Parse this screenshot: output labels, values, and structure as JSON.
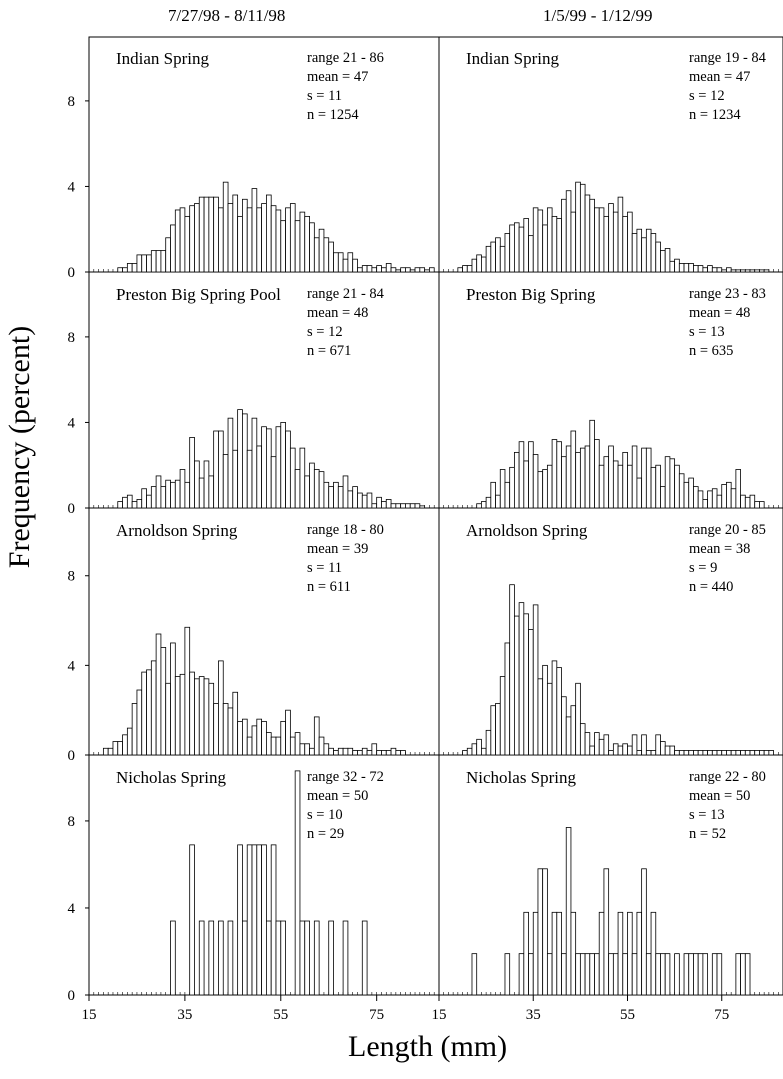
{
  "figure": {
    "ylabel": "Frequency (percent)",
    "xlabel": "Length (mm)"
  },
  "chart_data": [
    {
      "type": "bar",
      "column_title": "7/27/98 - 8/11/98",
      "panels": [
        {
          "site": "Indian Spring",
          "stats": [
            "range 21 - 86",
            "mean = 47",
            "s = 11",
            "n = 1254"
          ],
          "x": [
            21,
            22,
            23,
            24,
            25,
            26,
            27,
            28,
            29,
            30,
            31,
            32,
            33,
            34,
            35,
            36,
            37,
            38,
            39,
            40,
            41,
            42,
            43,
            44,
            45,
            46,
            47,
            48,
            49,
            50,
            51,
            52,
            53,
            54,
            55,
            56,
            57,
            58,
            59,
            60,
            61,
            62,
            63,
            64,
            65,
            66,
            67,
            68,
            69,
            70,
            71,
            72,
            73,
            74,
            75,
            76,
            77,
            78,
            79,
            80,
            81,
            82,
            83,
            84,
            85,
            86
          ],
          "values": [
            0.2,
            0.2,
            0.4,
            0.4,
            0.8,
            0.8,
            0.8,
            1.0,
            1.0,
            1.0,
            1.6,
            2.2,
            2.9,
            3.0,
            2.6,
            3.1,
            3.2,
            3.5,
            3.5,
            3.5,
            3.5,
            3.0,
            4.2,
            3.2,
            3.6,
            2.6,
            3.4,
            3.0,
            3.9,
            3.0,
            3.2,
            3.6,
            3.1,
            2.9,
            2.4,
            3.0,
            3.2,
            2.4,
            2.8,
            2.6,
            2.3,
            1.6,
            2.0,
            1.6,
            1.4,
            0.9,
            0.9,
            0.6,
            0.9,
            0.6,
            0.2,
            0.3,
            0.3,
            0.2,
            0.3,
            0.2,
            0.4,
            0.2,
            0.1,
            0.2,
            0.2,
            0.1,
            0.2,
            0.2,
            0.1,
            0.2
          ]
        },
        {
          "site": "Preston Big Spring Pool",
          "stats": [
            "range 21 - 84",
            "mean = 48",
            "s = 12",
            "n = 671"
          ],
          "x": [
            21,
            22,
            23,
            24,
            25,
            26,
            27,
            28,
            29,
            30,
            31,
            32,
            33,
            34,
            35,
            36,
            37,
            38,
            39,
            40,
            41,
            42,
            43,
            44,
            45,
            46,
            47,
            48,
            49,
            50,
            51,
            52,
            53,
            54,
            55,
            56,
            57,
            58,
            59,
            60,
            61,
            62,
            63,
            64,
            65,
            66,
            67,
            68,
            69,
            70,
            71,
            72,
            73,
            74,
            75,
            76,
            77,
            78,
            79,
            80,
            81,
            82,
            83,
            84
          ],
          "values": [
            0.3,
            0.5,
            0.6,
            0.3,
            0.4,
            0.9,
            0.6,
            1.0,
            1.5,
            1.0,
            1.3,
            1.2,
            1.3,
            1.8,
            1.2,
            3.3,
            2.2,
            1.4,
            2.2,
            1.5,
            3.6,
            3.6,
            2.5,
            4.2,
            2.7,
            4.6,
            4.4,
            2.7,
            4.2,
            2.9,
            3.8,
            3.7,
            2.4,
            3.8,
            4.0,
            3.6,
            2.8,
            1.8,
            2.8,
            1.5,
            2.1,
            1.8,
            1.7,
            1.2,
            1.0,
            1.2,
            1.0,
            1.5,
            0.8,
            1.0,
            0.7,
            0.6,
            0.7,
            0.2,
            0.5,
            0.3,
            0.4,
            0.2,
            0.2,
            0.2,
            0.2,
            0.2,
            0.2,
            0.1
          ]
        },
        {
          "site": "Arnoldson Spring",
          "stats": [
            "range 18 - 80",
            "mean = 39",
            "s = 11",
            "n = 611"
          ],
          "x": [
            18,
            19,
            20,
            21,
            22,
            23,
            24,
            25,
            26,
            27,
            28,
            29,
            30,
            31,
            32,
            33,
            34,
            35,
            36,
            37,
            38,
            39,
            40,
            41,
            42,
            43,
            44,
            45,
            46,
            47,
            48,
            49,
            50,
            51,
            52,
            53,
            54,
            55,
            56,
            57,
            58,
            59,
            60,
            61,
            62,
            63,
            64,
            65,
            66,
            67,
            68,
            69,
            70,
            71,
            72,
            73,
            74,
            75,
            76,
            77,
            78,
            79,
            80
          ],
          "values": [
            0.3,
            0.3,
            0.6,
            0.6,
            0.9,
            1.2,
            2.3,
            2.9,
            3.7,
            3.8,
            4.2,
            5.4,
            4.8,
            3.2,
            5.0,
            3.5,
            3.6,
            5.7,
            3.7,
            3.4,
            3.5,
            3.4,
            3.2,
            2.3,
            4.2,
            2.3,
            2.1,
            2.8,
            1.5,
            1.6,
            0.8,
            1.3,
            1.6,
            1.5,
            1.0,
            0.8,
            0.8,
            1.5,
            2.0,
            0.8,
            1.0,
            0.5,
            0.5,
            0.3,
            1.7,
            0.8,
            0.5,
            0.3,
            0.2,
            0.3,
            0.3,
            0.3,
            0.2,
            0.2,
            0.3,
            0.2,
            0.5,
            0.2,
            0.2,
            0.2,
            0.3,
            0.2,
            0.2
          ]
        }
      ]
    },
    {
      "type": "bar",
      "column_title": "1/5/99 - 1/12/99",
      "panels": [
        {
          "site": "Indian Spring",
          "stats": [
            "range 19 - 84",
            "mean = 47",
            "s = 12",
            "n = 1234"
          ],
          "x": [
            19,
            20,
            21,
            22,
            23,
            24,
            25,
            26,
            27,
            28,
            29,
            30,
            31,
            32,
            33,
            34,
            35,
            36,
            37,
            38,
            39,
            40,
            41,
            42,
            43,
            44,
            45,
            46,
            47,
            48,
            49,
            50,
            51,
            52,
            53,
            54,
            55,
            56,
            57,
            58,
            59,
            60,
            61,
            62,
            63,
            64,
            65,
            66,
            67,
            68,
            69,
            70,
            71,
            72,
            73,
            74,
            75,
            76,
            77,
            78,
            79,
            80,
            81,
            82,
            83,
            84
          ],
          "values": [
            0.2,
            0.3,
            0.3,
            0.6,
            0.8,
            0.7,
            1.2,
            1.4,
            1.6,
            1.2,
            1.8,
            2.2,
            2.3,
            2.1,
            2.5,
            1.7,
            3.0,
            2.9,
            2.2,
            3.0,
            2.6,
            2.5,
            3.4,
            3.8,
            2.8,
            4.2,
            4.1,
            3.6,
            3.4,
            3.0,
            3.0,
            2.6,
            3.2,
            2.8,
            3.5,
            2.6,
            2.8,
            1.8,
            2.0,
            1.6,
            2.0,
            1.8,
            1.4,
            1.0,
            1.1,
            0.5,
            0.6,
            0.4,
            0.4,
            0.4,
            0.3,
            0.3,
            0.2,
            0.3,
            0.2,
            0.2,
            0.1,
            0.2,
            0.1,
            0.1,
            0.1,
            0.1,
            0.1,
            0.1,
            0.1,
            0.1
          ]
        },
        {
          "site": "Preston Big Spring",
          "stats": [
            "range 23 - 83",
            "mean = 48",
            "s = 13",
            "n = 635"
          ],
          "x": [
            23,
            24,
            25,
            26,
            27,
            28,
            29,
            30,
            31,
            32,
            33,
            34,
            35,
            36,
            37,
            38,
            39,
            40,
            41,
            42,
            43,
            44,
            45,
            46,
            47,
            48,
            49,
            50,
            51,
            52,
            53,
            54,
            55,
            56,
            57,
            58,
            59,
            60,
            61,
            62,
            63,
            64,
            65,
            66,
            67,
            68,
            69,
            70,
            71,
            72,
            73,
            74,
            75,
            76,
            77,
            78,
            79,
            80,
            81,
            82,
            83
          ],
          "values": [
            0.2,
            0.3,
            0.5,
            1.2,
            0.6,
            1.8,
            1.2,
            1.9,
            2.6,
            3.1,
            2.2,
            3.1,
            2.5,
            1.7,
            1.8,
            2.0,
            3.2,
            3.1,
            2.4,
            2.9,
            3.6,
            2.6,
            2.8,
            2.9,
            4.1,
            3.2,
            2.0,
            2.4,
            2.9,
            2.2,
            2.0,
            2.6,
            2.0,
            2.9,
            1.4,
            2.8,
            2.8,
            1.9,
            2.0,
            1.0,
            2.4,
            2.3,
            2.0,
            1.6,
            1.2,
            1.4,
            1.0,
            0.8,
            0.4,
            0.8,
            0.9,
            0.6,
            1.1,
            1.2,
            0.9,
            1.8,
            0.6,
            0.5,
            0.6,
            0.3,
            0.3
          ]
        },
        {
          "site": "Arnoldson Spring",
          "stats": [
            "range 20 - 85",
            "mean = 38",
            "s = 9",
            "n = 440"
          ],
          "x": [
            20,
            21,
            22,
            23,
            24,
            25,
            26,
            27,
            28,
            29,
            30,
            31,
            32,
            33,
            34,
            35,
            36,
            37,
            38,
            39,
            40,
            41,
            42,
            43,
            44,
            45,
            46,
            47,
            48,
            49,
            50,
            51,
            52,
            53,
            54,
            55,
            56,
            57,
            58,
            59,
            60,
            61,
            62,
            63,
            64,
            65,
            66,
            67,
            68,
            69,
            70,
            71,
            72,
            73,
            74,
            75,
            76,
            77,
            78,
            79,
            80,
            81,
            82,
            83,
            84,
            85
          ],
          "values": [
            0.2,
            0.3,
            0.5,
            0.7,
            0.3,
            1.1,
            2.2,
            2.3,
            3.5,
            5.0,
            7.6,
            6.2,
            6.8,
            6.3,
            5.6,
            6.7,
            3.4,
            4.0,
            3.2,
            4.2,
            3.9,
            2.6,
            1.7,
            2.2,
            3.2,
            1.4,
            1.0,
            0.4,
            1.0,
            0.7,
            0.9,
            0.2,
            0.5,
            0.4,
            0.5,
            0.4,
            0.9,
            0.2,
            0.9,
            0.2,
            0.2,
            0.9,
            0.6,
            0.4,
            0.4,
            0.2,
            0.2,
            0.2,
            0.2,
            0.2,
            0.2,
            0.2,
            0.2,
            0.2,
            0.2,
            0.2,
            0.2,
            0.2,
            0.2,
            0.2,
            0.2,
            0.2,
            0.2,
            0.2,
            0.2,
            0.2
          ]
        }
      ]
    },
    {
      "type": "bar",
      "column_title": "7/27/98 - 8/11/98",
      "panels": [
        {
          "site": "Nicholas Spring",
          "stats": [
            "range 32 - 72",
            "mean = 50",
            "s = 10",
            "n = 29"
          ],
          "x": [
            32,
            36,
            38,
            40,
            42,
            44,
            46,
            47,
            48,
            49,
            50,
            51,
            52,
            53,
            54,
            55,
            56,
            57,
            58,
            59,
            60,
            61,
            62,
            63,
            64,
            65,
            66,
            67,
            68,
            69,
            70,
            71,
            72
          ],
          "values": [
            3.4,
            6.9,
            3.4,
            3.4,
            3.4,
            3.4,
            6.9,
            3.4,
            6.9,
            6.9,
            6.9,
            6.9,
            3.4,
            6.9,
            3.4,
            3.4,
            0,
            0,
            10.3,
            3.4,
            3.4,
            0,
            3.4,
            0,
            0,
            3.4,
            0,
            0,
            3.4,
            0,
            0,
            0,
            3.4
          ]
        },
        {
          "site": "Nicholas Spring",
          "stats": [
            "range 22 - 80",
            "mean = 50",
            "s = 13",
            "n = 52"
          ],
          "x": [
            22,
            29,
            32,
            33,
            34,
            35,
            36,
            37,
            38,
            39,
            40,
            41,
            42,
            43,
            44,
            45,
            46,
            47,
            48,
            49,
            50,
            51,
            52,
            53,
            54,
            55,
            56,
            57,
            58,
            59,
            60,
            61,
            62,
            63,
            64,
            65,
            66,
            67,
            68,
            69,
            70,
            71,
            72,
            73,
            74,
            75,
            76,
            77,
            78,
            79,
            80
          ],
          "values": [
            1.9,
            1.9,
            1.9,
            3.8,
            1.9,
            3.8,
            5.8,
            5.8,
            1.9,
            3.8,
            3.8,
            1.9,
            7.7,
            3.8,
            1.9,
            1.9,
            1.9,
            1.9,
            1.9,
            3.8,
            5.8,
            1.9,
            1.9,
            3.8,
            1.9,
            3.8,
            1.9,
            3.8,
            5.8,
            1.9,
            3.8,
            1.9,
            1.9,
            1.9,
            0,
            1.9,
            0,
            1.9,
            1.9,
            1.9,
            1.9,
            1.9,
            0,
            1.9,
            1.9,
            0,
            0,
            0,
            1.9,
            1.9,
            1.9
          ]
        }
      ]
    }
  ],
  "axes": {
    "x_ticks": [
      "15",
      "35",
      "55",
      "75"
    ],
    "x_ticks_right": [
      "15",
      "35",
      "55",
      "75"
    ],
    "y_ticks": [
      "0",
      "4",
      "8"
    ],
    "xlim": [
      15,
      88
    ],
    "ylim": [
      0,
      10.8
    ]
  }
}
